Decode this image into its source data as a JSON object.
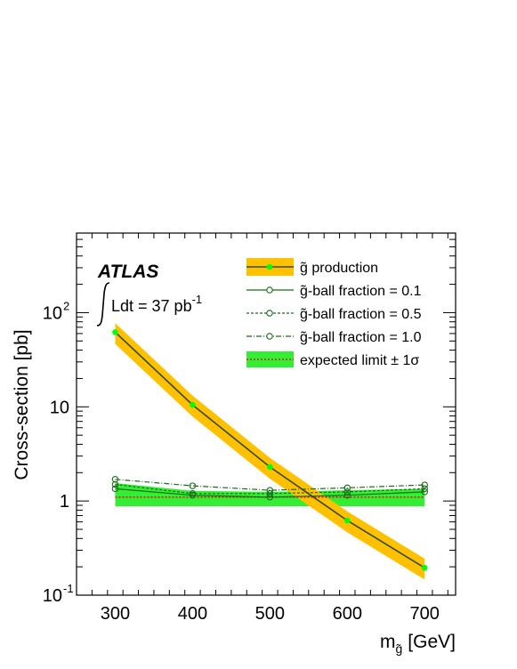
{
  "chart_data": {
    "type": "line",
    "y_scale": "log",
    "xlim": [
      250,
      740
    ],
    "ylim": [
      0.1,
      700
    ],
    "xlabel_main": "m",
    "xlabel_sub": "g̃",
    "xlabel_unit": "[GeV]",
    "ylabel": "Cross-section [pb]",
    "x_ticks": [
      "300",
      "400",
      "500",
      "600",
      "700"
    ],
    "x_tick_values": [
      300,
      400,
      500,
      600,
      700
    ],
    "y_ticks": [
      {
        "value": 0.1,
        "base": "10",
        "exp": "-1"
      },
      {
        "value": 1,
        "base": "1",
        "exp": ""
      },
      {
        "value": 10,
        "base": "10",
        "exp": ""
      },
      {
        "value": 100,
        "base": "10",
        "exp": "2"
      }
    ],
    "experiment": "ATLAS",
    "lumi_text": "Ldt = 37 pb",
    "lumi_exp": "-1",
    "legend_position": "top-right",
    "production": {
      "x": [
        300,
        400,
        500,
        600,
        700
      ],
      "y": [
        62,
        10.5,
        2.3,
        0.62,
        0.195
      ],
      "band_ratio": 0.25,
      "line_color": "#2e4a2e",
      "band_color": "#ffc000",
      "marker_color": "#00ff00"
    },
    "series": [
      {
        "name": "g̃-ball fraction = 0.1",
        "x": [
          300,
          400,
          500,
          600,
          700
        ],
        "y": [
          1.35,
          1.15,
          1.1,
          1.15,
          1.25
        ],
        "color": "#1a6b1a",
        "dash": ""
      },
      {
        "name": "g̃-ball fraction = 0.5",
        "x": [
          300,
          400,
          500,
          600,
          700
        ],
        "y": [
          1.5,
          1.2,
          1.2,
          1.25,
          1.35
        ],
        "color": "#1a6b1a",
        "dash": "3,2"
      },
      {
        "name": "g̃-ball fraction = 1.0",
        "x": [
          300,
          400,
          500,
          600,
          700
        ],
        "y": [
          1.7,
          1.45,
          1.3,
          1.38,
          1.48
        ],
        "color": "#1a6b1a",
        "dash": "6,2,1,2"
      }
    ],
    "expected": {
      "x": [
        300,
        400,
        500,
        600,
        700
      ],
      "median": [
        1.1,
        1.1,
        1.1,
        1.1,
        1.1
      ],
      "lower": [
        0.88,
        0.88,
        0.88,
        0.88,
        0.88
      ],
      "upper": [
        1.55,
        1.28,
        1.25,
        1.3,
        1.35
      ],
      "band_color": "#33ee33",
      "line_color": "#d02020"
    },
    "legend": [
      {
        "kind": "production",
        "label": "g̃ production"
      },
      {
        "kind": "f01",
        "label": "g̃-ball fraction = 0.1"
      },
      {
        "kind": "f05",
        "label": "g̃-ball fraction = 0.5"
      },
      {
        "kind": "f10",
        "label": "g̃-ball fraction = 1.0"
      },
      {
        "kind": "expected",
        "label": "expected limit ± 1σ"
      }
    ]
  }
}
